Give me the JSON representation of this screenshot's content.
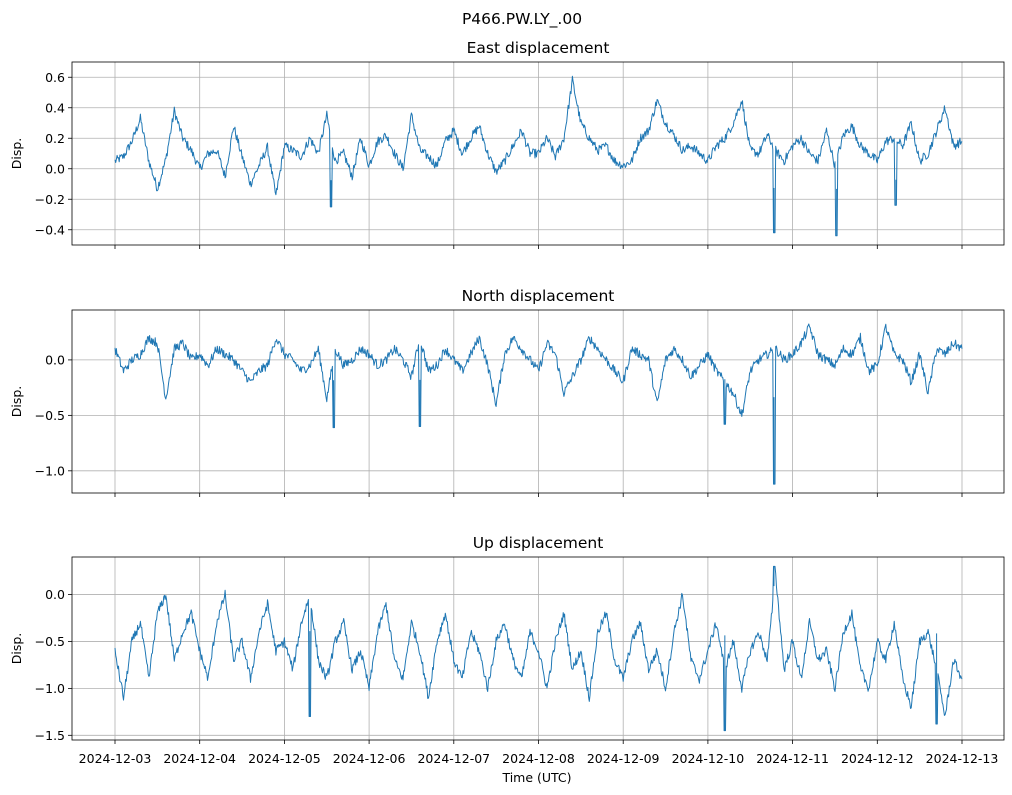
{
  "chart_data": {
    "type": "line",
    "title": "P466.PW.LY_.00",
    "xlabel": "Time (UTC)",
    "x_range": [
      "2024-12-03",
      "2024-12-13"
    ],
    "x_ticks": [
      "2024-12-03",
      "2024-12-04",
      "2024-12-05",
      "2024-12-06",
      "2024-12-07",
      "2024-12-08",
      "2024-12-09",
      "2024-12-10",
      "2024-12-11",
      "2024-12-12",
      "2024-12-13"
    ],
    "grid": true,
    "line_color": "#1f77b4",
    "panels": [
      {
        "title": "East displacement",
        "ylabel": "Disp.",
        "ylim": [
          -0.5,
          0.7
        ],
        "yticks": [
          -0.4,
          -0.2,
          0.0,
          0.2,
          0.4,
          0.6
        ],
        "ytick_labels": [
          "−0.4",
          "−0.2",
          "0.0",
          "0.2",
          "0.4",
          "0.6"
        ],
        "x_days": [
          0,
          0.1,
          0.2,
          0.3,
          0.4,
          0.5,
          0.6,
          0.7,
          0.8,
          0.9,
          1.0,
          1.1,
          1.2,
          1.3,
          1.4,
          1.5,
          1.6,
          1.7,
          1.8,
          1.9,
          2.0,
          2.1,
          2.2,
          2.3,
          2.4,
          2.5,
          2.6,
          2.7,
          2.8,
          2.9,
          3.0,
          3.1,
          3.2,
          3.3,
          3.4,
          3.5,
          3.6,
          3.7,
          3.8,
          3.9,
          4.0,
          4.1,
          4.2,
          4.3,
          4.4,
          4.5,
          4.6,
          4.7,
          4.8,
          4.9,
          5.0,
          5.1,
          5.2,
          5.3,
          5.4,
          5.5,
          5.6,
          5.7,
          5.8,
          5.9,
          6.0,
          6.1,
          6.2,
          6.3,
          6.4,
          6.5,
          6.6,
          6.7,
          6.8,
          6.9,
          7.0,
          7.1,
          7.2,
          7.3,
          7.4,
          7.5,
          7.6,
          7.7,
          7.8,
          7.9,
          8.0,
          8.1,
          8.2,
          8.3,
          8.4,
          8.5,
          8.6,
          8.7,
          8.8,
          8.9,
          9.0,
          9.1,
          9.2,
          9.3,
          9.4,
          9.5,
          9.6,
          9.7,
          9.8,
          9.9,
          10.0
        ],
        "values": [
          0.05,
          0.08,
          0.18,
          0.33,
          0.05,
          -0.13,
          0.06,
          0.38,
          0.2,
          0.12,
          0.0,
          0.1,
          0.12,
          -0.05,
          0.28,
          0.08,
          -0.1,
          0.02,
          0.14,
          -0.18,
          0.15,
          0.12,
          0.08,
          0.2,
          0.1,
          0.35,
          0.05,
          0.1,
          -0.05,
          0.2,
          0.02,
          0.18,
          0.22,
          0.1,
          0.0,
          0.35,
          0.12,
          0.08,
          0.02,
          0.18,
          0.25,
          0.1,
          0.2,
          0.28,
          0.1,
          -0.02,
          0.05,
          0.15,
          0.25,
          0.1,
          0.1,
          0.2,
          0.08,
          0.2,
          0.58,
          0.3,
          0.2,
          0.12,
          0.15,
          0.05,
          0.02,
          0.05,
          0.2,
          0.25,
          0.45,
          0.3,
          0.22,
          0.12,
          0.15,
          0.1,
          0.05,
          0.15,
          0.2,
          0.3,
          0.45,
          0.12,
          0.1,
          0.22,
          0.12,
          0.05,
          0.15,
          0.2,
          0.1,
          0.05,
          0.25,
          0.02,
          0.22,
          0.28,
          0.15,
          0.1,
          0.05,
          0.18,
          0.2,
          0.15,
          0.3,
          0.05,
          0.1,
          0.25,
          0.4,
          0.15,
          0.18
        ],
        "spikes": [
          {
            "x": 7.78,
            "y": -0.42
          },
          {
            "x": 8.52,
            "y": -0.44
          },
          {
            "x": 9.22,
            "y": -0.24
          },
          {
            "x": 2.55,
            "y": -0.25
          }
        ]
      },
      {
        "title": "North displacement",
        "ylabel": "Disp.",
        "ylim": [
          -1.2,
          0.45
        ],
        "yticks": [
          -1.0,
          -0.5,
          0.0
        ],
        "ytick_labels": [
          "−1.0",
          "−0.5",
          "0.0"
        ],
        "x_days": [
          0,
          0.1,
          0.2,
          0.3,
          0.4,
          0.5,
          0.6,
          0.7,
          0.8,
          0.9,
          1.0,
          1.1,
          1.2,
          1.3,
          1.4,
          1.5,
          1.6,
          1.7,
          1.8,
          1.9,
          2.0,
          2.1,
          2.2,
          2.3,
          2.4,
          2.5,
          2.6,
          2.7,
          2.8,
          2.9,
          3.0,
          3.1,
          3.2,
          3.3,
          3.4,
          3.5,
          3.6,
          3.7,
          3.8,
          3.9,
          4.0,
          4.1,
          4.2,
          4.3,
          4.4,
          4.5,
          4.6,
          4.7,
          4.8,
          4.9,
          5.0,
          5.1,
          5.2,
          5.3,
          5.4,
          5.5,
          5.6,
          5.7,
          5.8,
          5.9,
          6.0,
          6.1,
          6.2,
          6.3,
          6.4,
          6.5,
          6.6,
          6.7,
          6.8,
          6.9,
          7.0,
          7.1,
          7.2,
          7.3,
          7.4,
          7.5,
          7.6,
          7.7,
          7.8,
          7.9,
          8.0,
          8.1,
          8.2,
          8.3,
          8.4,
          8.5,
          8.6,
          8.7,
          8.8,
          8.9,
          9.0,
          9.1,
          9.2,
          9.3,
          9.4,
          9.5,
          9.6,
          9.7,
          9.8,
          9.9,
          10.0
        ],
        "values": [
          0.1,
          -0.1,
          0.0,
          0.05,
          0.2,
          0.15,
          -0.35,
          0.1,
          0.15,
          0.0,
          0.05,
          -0.05,
          0.1,
          0.05,
          0.0,
          -0.1,
          -0.2,
          -0.1,
          -0.05,
          0.2,
          0.05,
          0.0,
          -0.1,
          -0.05,
          0.1,
          -0.35,
          0.1,
          -0.05,
          0.0,
          0.1,
          0.05,
          -0.05,
          0.0,
          0.1,
          0.0,
          -0.15,
          0.2,
          -0.1,
          -0.05,
          0.1,
          0.0,
          -0.1,
          0.05,
          0.2,
          -0.05,
          -0.4,
          0.05,
          0.2,
          0.1,
          0.0,
          -0.1,
          0.15,
          0.05,
          -0.3,
          -0.15,
          0.0,
          0.2,
          0.1,
          0.0,
          -0.1,
          -0.2,
          0.1,
          0.05,
          0.0,
          -0.4,
          0.0,
          0.1,
          0.0,
          -0.15,
          -0.05,
          0.05,
          -0.1,
          -0.2,
          -0.3,
          -0.5,
          -0.1,
          0.0,
          0.05,
          0.1,
          0.0,
          0.05,
          0.15,
          0.3,
          0.05,
          0.0,
          -0.05,
          0.1,
          0.05,
          0.2,
          -0.1,
          -0.05,
          0.3,
          0.05,
          0.0,
          -0.2,
          0.05,
          -0.3,
          0.1,
          0.05,
          0.15,
          0.1
        ],
        "spikes": [
          {
            "x": 7.78,
            "y": -1.12
          },
          {
            "x": 2.58,
            "y": -0.61
          },
          {
            "x": 3.6,
            "y": -0.6
          },
          {
            "x": 7.2,
            "y": -0.58
          }
        ]
      },
      {
        "title": "Up displacement",
        "ylabel": "Disp.",
        "ylim": [
          -1.55,
          0.4
        ],
        "yticks": [
          -1.5,
          -1.0,
          -0.5,
          0.0
        ],
        "ytick_labels": [
          "−1.5",
          "−1.0",
          "−0.5",
          "0.0"
        ],
        "x_days": [
          0,
          0.1,
          0.2,
          0.3,
          0.4,
          0.5,
          0.6,
          0.7,
          0.8,
          0.9,
          1.0,
          1.1,
          1.2,
          1.3,
          1.4,
          1.5,
          1.6,
          1.7,
          1.8,
          1.9,
          2.0,
          2.1,
          2.2,
          2.3,
          2.4,
          2.5,
          2.6,
          2.7,
          2.8,
          2.9,
          3.0,
          3.1,
          3.2,
          3.3,
          3.4,
          3.5,
          3.6,
          3.7,
          3.8,
          3.9,
          4.0,
          4.1,
          4.2,
          4.3,
          4.4,
          4.5,
          4.6,
          4.7,
          4.8,
          4.9,
          5.0,
          5.1,
          5.2,
          5.3,
          5.4,
          5.5,
          5.6,
          5.7,
          5.8,
          5.9,
          6.0,
          6.1,
          6.2,
          6.3,
          6.4,
          6.5,
          6.6,
          6.7,
          6.8,
          6.9,
          7.0,
          7.1,
          7.2,
          7.3,
          7.4,
          7.5,
          7.6,
          7.7,
          7.8,
          7.9,
          8.0,
          8.1,
          8.2,
          8.3,
          8.4,
          8.5,
          8.6,
          8.7,
          8.8,
          8.9,
          9.0,
          9.1,
          9.2,
          9.3,
          9.4,
          9.5,
          9.6,
          9.7,
          9.8,
          9.9,
          10.0
        ],
        "values": [
          -0.6,
          -1.1,
          -0.5,
          -0.3,
          -0.9,
          -0.2,
          0.0,
          -0.7,
          -0.4,
          -0.2,
          -0.6,
          -0.9,
          -0.3,
          0.0,
          -0.7,
          -0.5,
          -0.9,
          -0.4,
          -0.1,
          -0.6,
          -0.5,
          -0.8,
          -0.3,
          0.0,
          -0.7,
          -0.9,
          -0.5,
          -0.3,
          -0.8,
          -0.6,
          -1.0,
          -0.4,
          -0.1,
          -0.7,
          -0.9,
          -0.3,
          -0.6,
          -1.1,
          -0.5,
          -0.2,
          -0.7,
          -0.9,
          -0.4,
          -0.6,
          -1.0,
          -0.5,
          -0.3,
          -0.7,
          -0.9,
          -0.4,
          -0.6,
          -1.0,
          -0.5,
          -0.2,
          -0.8,
          -0.6,
          -1.1,
          -0.4,
          -0.2,
          -0.7,
          -0.9,
          -0.5,
          -0.3,
          -0.8,
          -0.6,
          -1.0,
          -0.4,
          0.0,
          -0.7,
          -0.9,
          -0.6,
          -0.3,
          -0.8,
          -0.5,
          -1.0,
          -0.6,
          -0.4,
          -0.7,
          0.2,
          -0.8,
          -0.5,
          -0.9,
          -0.3,
          -0.7,
          -0.6,
          -1.0,
          -0.4,
          -0.2,
          -0.8,
          -1.0,
          -0.5,
          -0.7,
          -0.3,
          -0.9,
          -1.2,
          -0.5,
          -0.4,
          -0.8,
          -1.3,
          -0.7,
          -0.9
        ],
        "spikes": [
          {
            "x": 7.2,
            "y": -1.45
          },
          {
            "x": 7.78,
            "y": 0.3
          },
          {
            "x": 9.7,
            "y": -1.38
          },
          {
            "x": 2.3,
            "y": -1.3
          }
        ]
      }
    ]
  }
}
